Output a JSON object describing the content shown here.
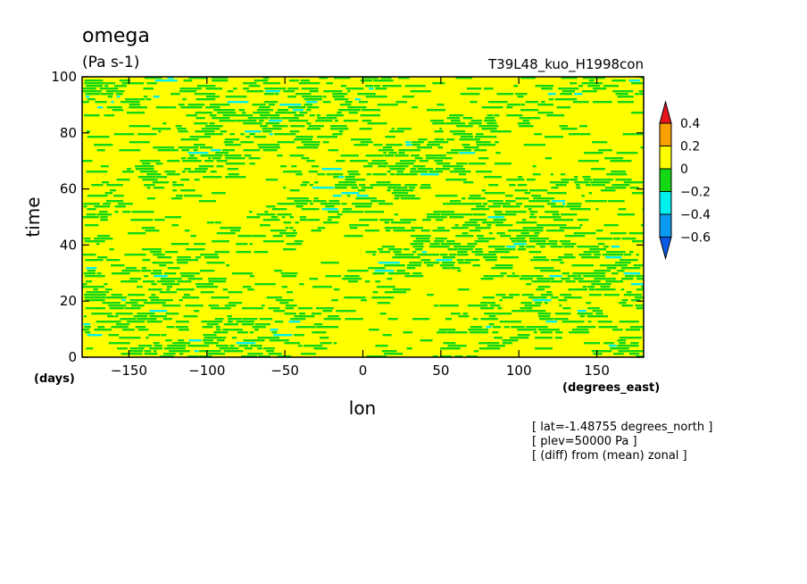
{
  "chart_data": {
    "type": "heatmap",
    "title": "omega",
    "units": "(Pa s-1)",
    "run_name": "T39L48_kuo_H1998con",
    "xlabel": "lon",
    "xunits": "(degrees_east)",
    "ylabel": "time",
    "yunits": "(days)",
    "xlim": [
      -180,
      180
    ],
    "ylim": [
      0,
      100
    ],
    "xticks": [
      -150,
      -100,
      -50,
      0,
      50,
      100,
      150
    ],
    "yticks": [
      0,
      20,
      40,
      60,
      80,
      100
    ],
    "colorbar": {
      "levels": [
        "0.4",
        "0.2",
        "0",
        "-0.2",
        "-0.4",
        "-0.6"
      ],
      "colors": [
        "#e8141b",
        "#f7a000",
        "#ffff00",
        "#14d814",
        "#00f0f0",
        "#0a9bf0",
        "#0a5ae6"
      ]
    },
    "annotations": [
      "[ lat=-1.48755 degrees_north ]",
      "[ plev=50000 Pa ]",
      "[ (diff) from (mean) zonal ]"
    ]
  },
  "colors": {
    "positive": "#ffff00",
    "negative": "#14d814",
    "strong_negative": "#00f0f0",
    "very_negative": "#0a9bf0"
  }
}
